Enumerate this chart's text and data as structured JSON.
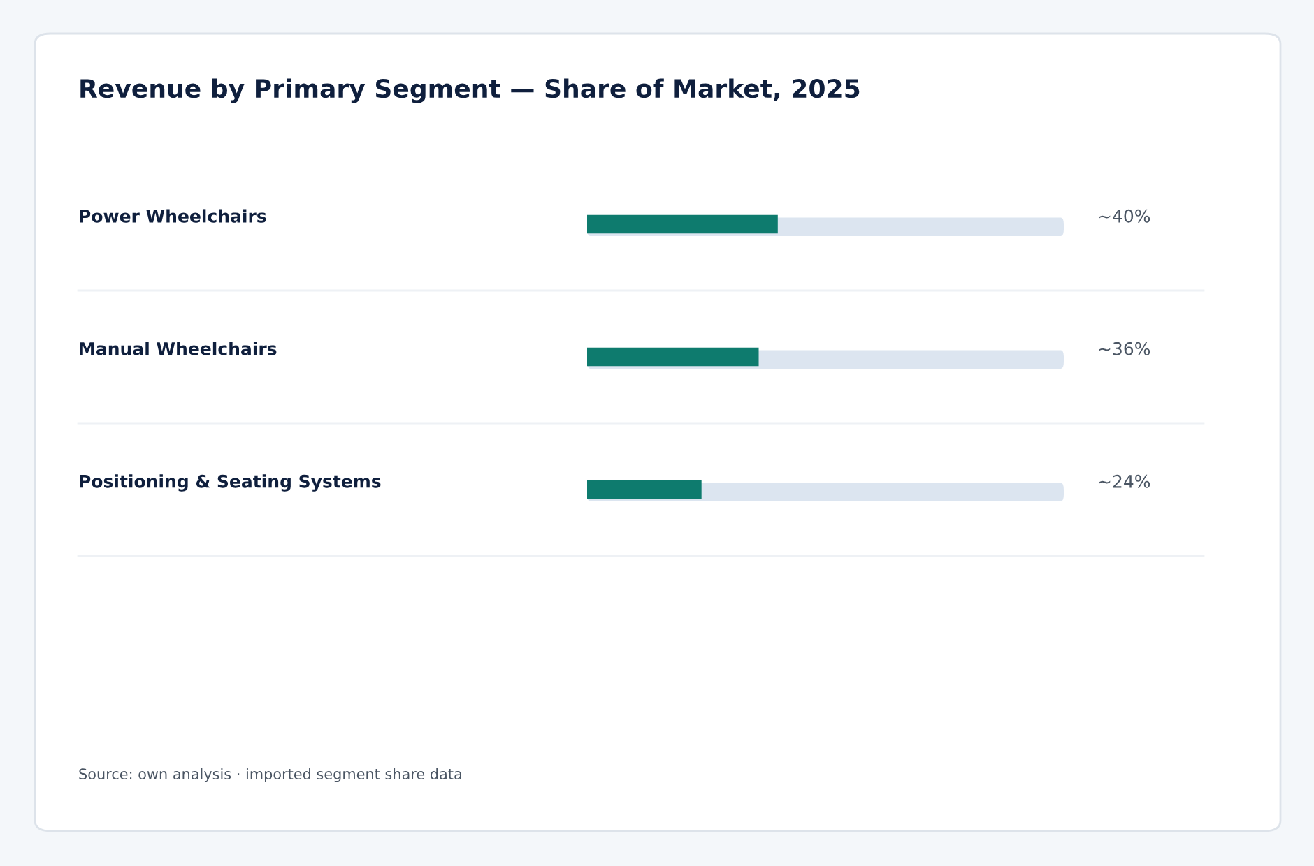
{
  "chart_data": {
    "type": "bar",
    "orientation": "horizontal",
    "title": "Revenue by Primary Segment — Share of Market, 2025",
    "categories": [
      "Power Wheelchairs",
      "Manual Wheelchairs",
      "Positioning & Seating Systems"
    ],
    "values": [
      40,
      36,
      24
    ],
    "value_labels": [
      "~40%",
      "~36%",
      "~24%"
    ],
    "color": "#0e7b6e",
    "xlim": [
      0,
      100
    ],
    "tick_labels": false,
    "annotations": [
      "Source: own analysis · imported segment share data"
    ]
  }
}
